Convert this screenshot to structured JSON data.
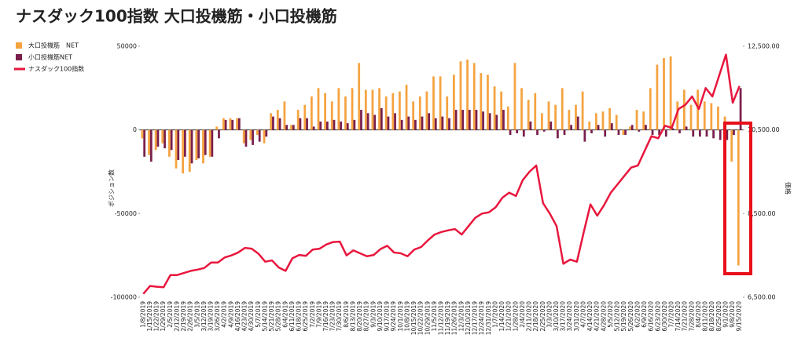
{
  "chart_data": {
    "type": "bar",
    "title": "ナスダック100指数 大口投機筋・小口投機筋",
    "y_label": "ポジション数",
    "y2_label": "価格",
    "categories": [
      "1/8/2019",
      "1/15/2019",
      "1/22/2019",
      "1/29/2019",
      "2/5/2019",
      "2/12/2019",
      "2/19/2019",
      "2/26/2019",
      "3/5/2019",
      "3/12/2019",
      "3/19/2019",
      "3/26/2019",
      "4/2/2019",
      "4/9/2019",
      "4/16/2019",
      "4/23/2019",
      "4/30/2019",
      "5/7/2019",
      "5/14/2019",
      "5/21/2019",
      "5/28/2019",
      "6/4/2019",
      "6/11/2019",
      "6/18/2019",
      "6/25/2019",
      "7/2/2019",
      "7/9/2019",
      "7/16/2019",
      "7/23/2019",
      "7/30/2019",
      "8/6/2019",
      "8/13/2019",
      "8/20/2019",
      "8/27/2019",
      "9/3/2019",
      "9/10/2019",
      "9/17/2019",
      "9/24/2019",
      "10/1/2019",
      "10/8/2019",
      "10/15/2019",
      "10/22/2019",
      "10/29/2019",
      "11/5/2019",
      "11/12/2019",
      "11/19/2019",
      "11/26/2019",
      "12/3/2019",
      "12/10/2019",
      "12/17/2019",
      "12/24/2019",
      "12/31/2019",
      "1/7/2020",
      "1/14/2020",
      "1/21/2020",
      "1/28/2020",
      "2/4/2020",
      "2/11/2020",
      "2/18/2020",
      "2/25/2020",
      "3/3/2020",
      "3/10/2020",
      "3/17/2020",
      "3/24/2020",
      "3/31/2020",
      "4/7/2020",
      "4/14/2020",
      "4/21/2020",
      "4/28/2020",
      "5/5/2020",
      "5/12/2020",
      "5/19/2020",
      "5/26/2020",
      "6/2/2020",
      "6/9/2020",
      "6/16/2020",
      "6/23/2020",
      "6/30/2020",
      "7/7/2020",
      "7/14/2020",
      "7/21/2020",
      "7/28/2020",
      "8/4/2020",
      "8/11/2020",
      "8/18/2020",
      "8/25/2020",
      "9/1/2020",
      "9/8/2020",
      "9/15/2020"
    ],
    "series": [
      {
        "name": "大口投機筋　NET",
        "type": "bar",
        "color": "#f5a340",
        "values": [
          -5000,
          -15000,
          -12000,
          -8000,
          -16000,
          -23000,
          -26000,
          -25000,
          -18000,
          -20000,
          -16000,
          2000,
          7000,
          7000,
          7000,
          -8000,
          -6000,
          -3000,
          -8000,
          10000,
          12000,
          17000,
          3000,
          12000,
          15000,
          20000,
          25000,
          22000,
          17000,
          25000,
          20000,
          25000,
          40000,
          24000,
          24000,
          25000,
          20000,
          22000,
          23000,
          27000,
          17000,
          20000,
          23000,
          32000,
          32000,
          20000,
          33000,
          41000,
          42000,
          40000,
          34000,
          33000,
          26000,
          23000,
          14000,
          40000,
          25000,
          18000,
          22000,
          10000,
          17000,
          15000,
          25000,
          12000,
          15000,
          23000,
          5000,
          10000,
          11000,
          13000,
          9000,
          -3000,
          2000,
          12000,
          11000,
          25000,
          39000,
          43000,
          44000,
          17000,
          24000,
          15000,
          24000,
          17000,
          16000,
          14000,
          8000,
          -19000,
          -81000
        ]
      },
      {
        "name": "小口投機筋NET",
        "type": "bar",
        "color": "#7a1f4c",
        "values": [
          -16000,
          -19000,
          -10000,
          -11000,
          -12000,
          -18000,
          -16000,
          -20000,
          -17000,
          -15000,
          -16000,
          -5000,
          6000,
          6000,
          7000,
          -10000,
          -9000,
          -7000,
          -4000,
          8000,
          7000,
          3000,
          3000,
          7000,
          7000,
          2000,
          5000,
          5000,
          6000,
          5000,
          4000,
          6000,
          12000,
          10000,
          9000,
          13000,
          8000,
          10000,
          6000,
          8000,
          6000,
          8000,
          10000,
          7000,
          8000,
          7000,
          12000,
          12000,
          12000,
          12000,
          11000,
          10000,
          9000,
          12000,
          -3000,
          -2000,
          -4000,
          5000,
          -3000,
          -1000,
          5000,
          -5000,
          -3000,
          3000,
          8000,
          -7000,
          -2000,
          3000,
          -4000,
          4000,
          -3000,
          -3000,
          3000,
          -1000,
          3000,
          -3000,
          -3000,
          -4000,
          1000,
          -2000,
          2000,
          -4000,
          -4000,
          -4000,
          -5000,
          -6000,
          -6000,
          -3000,
          25000
        ]
      },
      {
        "name": "ナスダック100指数",
        "type": "line",
        "axis": "y2",
        "color": "#e8173d",
        "values": [
          6580,
          6770,
          6750,
          6740,
          7030,
          7030,
          7080,
          7130,
          7160,
          7200,
          7330,
          7330,
          7450,
          7500,
          7570,
          7680,
          7660,
          7540,
          7350,
          7380,
          7210,
          7130,
          7430,
          7510,
          7490,
          7640,
          7660,
          7760,
          7820,
          7830,
          7500,
          7620,
          7550,
          7480,
          7510,
          7650,
          7730,
          7570,
          7550,
          7480,
          7640,
          7700,
          7860,
          8000,
          8060,
          8100,
          8130,
          8000,
          8200,
          8400,
          8500,
          8530,
          8650,
          8880,
          9000,
          8920,
          9300,
          9500,
          9650,
          8750,
          8500,
          8200,
          7300,
          7400,
          7350,
          8050,
          8720,
          8450,
          8700,
          9000,
          9200,
          9400,
          9600,
          9650,
          10000,
          10350,
          10300,
          10600,
          10550,
          11000,
          11100,
          11300,
          11000,
          11500,
          11300,
          11800,
          12300,
          11150,
          11550
        ]
      }
    ],
    "ylim": [
      -100000,
      50000
    ],
    "yticks": [
      -100000,
      -50000,
      0,
      50000
    ],
    "y2lim": [
      6500,
      12500
    ],
    "y2ticks": [
      {
        "value": 6500,
        "label": "6,500.00"
      },
      {
        "value": 8500,
        "label": "8,500.00"
      },
      {
        "value": 10500,
        "label": "10,500.00"
      },
      {
        "value": 12500,
        "label": "12,500.00"
      }
    ],
    "grid": false,
    "legend": "top-left"
  }
}
